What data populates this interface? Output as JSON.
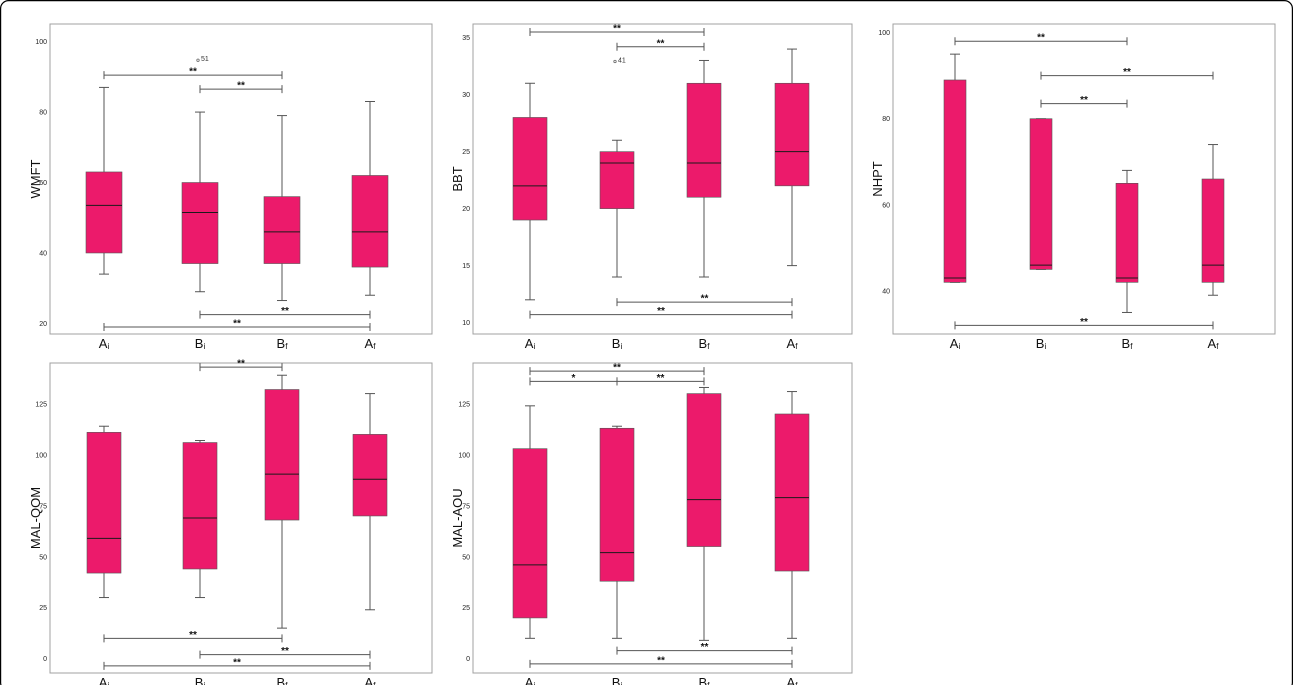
{
  "colors": {
    "box_fill": "#EC1A6B",
    "whisker": "#555555",
    "median": "#1a1a1a"
  },
  "chart_data": [
    {
      "type": "box",
      "ylabel": "WMFT",
      "categories": [
        "Ai",
        "Bi",
        "Bf",
        "Af"
      ],
      "category_labels": [
        {
          "main": "A",
          "sub": "i"
        },
        {
          "main": "B",
          "sub": "i"
        },
        {
          "main": "B",
          "sub": "f"
        },
        {
          "main": "A",
          "sub": "f"
        }
      ],
      "ylim": [
        17,
        105
      ],
      "yticks": [
        20,
        40,
        60,
        80,
        100
      ],
      "boxes": [
        {
          "min": 34,
          "q1": 40,
          "median": 53.5,
          "q3": 63,
          "max": 87
        },
        {
          "min": 29,
          "q1": 37,
          "median": 51.5,
          "q3": 60,
          "max": 80
        },
        {
          "min": 26.5,
          "q1": 37,
          "median": 46,
          "q3": 56,
          "max": 79
        },
        {
          "min": 28,
          "q1": 36,
          "median": 46,
          "q3": 62,
          "max": 83
        }
      ],
      "outliers": [
        {
          "cat": 1,
          "value": 95,
          "label": "51"
        }
      ],
      "significance": [
        {
          "from": 0,
          "to": 2,
          "y": 90.5,
          "label": "**"
        },
        {
          "from": 1,
          "to": 2,
          "y": 86.5,
          "label": "**"
        },
        {
          "from": 1,
          "to": 3,
          "y": 22.5,
          "label": "**"
        },
        {
          "from": 0,
          "to": 3,
          "y": 19,
          "label": "**"
        }
      ]
    },
    {
      "type": "box",
      "ylabel": "BBT",
      "categories": [
        "Ai",
        "Bi",
        "Bf",
        "Af"
      ],
      "category_labels": [
        {
          "main": "A",
          "sub": "i"
        },
        {
          "main": "B",
          "sub": "i"
        },
        {
          "main": "B",
          "sub": "f"
        },
        {
          "main": "A",
          "sub": "f"
        }
      ],
      "ylim": [
        9,
        36.2
      ],
      "yticks": [
        10,
        15,
        20,
        25,
        30,
        35
      ],
      "boxes": [
        {
          "min": 12,
          "q1": 19,
          "median": 22,
          "q3": 28,
          "max": 31
        },
        {
          "min": 14,
          "q1": 20,
          "median": 24,
          "q3": 25,
          "max": 26
        },
        {
          "min": 14,
          "q1": 21,
          "median": 24,
          "q3": 31,
          "max": 33
        },
        {
          "min": 15,
          "q1": 22,
          "median": 25,
          "q3": 31,
          "max": 34
        }
      ],
      "outliers": [
        {
          "cat": 1,
          "value": 33,
          "label": "41"
        }
      ],
      "significance": [
        {
          "from": 0,
          "to": 2,
          "y": 35.5,
          "label": "**"
        },
        {
          "from": 1,
          "to": 2,
          "y": 34.2,
          "label": "**"
        },
        {
          "from": 1,
          "to": 3,
          "y": 11.8,
          "label": "**"
        },
        {
          "from": 0,
          "to": 3,
          "y": 10.7,
          "label": "**"
        }
      ]
    },
    {
      "type": "box",
      "ylabel": "NHPT",
      "categories": [
        "Ai",
        "Bi",
        "Bf",
        "Af"
      ],
      "category_labels": [
        {
          "main": "A",
          "sub": "i"
        },
        {
          "main": "B",
          "sub": "i"
        },
        {
          "main": "B",
          "sub": "f"
        },
        {
          "main": "A",
          "sub": "f"
        }
      ],
      "ylim": [
        30,
        102
      ],
      "yticks": [
        40,
        60,
        80,
        100
      ],
      "boxes": [
        {
          "min": 42,
          "q1": 42,
          "median": 43,
          "q3": 89,
          "max": 95
        },
        {
          "min": 45,
          "q1": 45,
          "median": 46,
          "q3": 80,
          "max": 80
        },
        {
          "min": 35,
          "q1": 42,
          "median": 43,
          "q3": 65,
          "max": 68
        },
        {
          "min": 39,
          "q1": 42,
          "median": 46,
          "q3": 66,
          "max": 74
        }
      ],
      "outliers": [],
      "significance": [
        {
          "from": 0,
          "to": 2,
          "y": 98,
          "label": "**"
        },
        {
          "from": 1,
          "to": 3,
          "y": 90,
          "label": "**"
        },
        {
          "from": 1,
          "to": 2,
          "y": 83.5,
          "label": "**"
        },
        {
          "from": 0,
          "to": 3,
          "y": 32,
          "label": "**"
        }
      ]
    },
    {
      "type": "box",
      "ylabel": "MAL-QOM",
      "categories": [
        "Ai",
        "Bi",
        "Bf",
        "Af"
      ],
      "category_labels": [
        {
          "main": "A",
          "sub": "i"
        },
        {
          "main": "B",
          "sub": "i"
        },
        {
          "main": "B",
          "sub": "f"
        },
        {
          "main": "A",
          "sub": "f"
        }
      ],
      "ylim": [
        -7,
        145
      ],
      "yticks": [
        0,
        25,
        50,
        75,
        100,
        125
      ],
      "boxes": [
        {
          "min": 30,
          "q1": 42,
          "median": 59,
          "q3": 111,
          "max": 114
        },
        {
          "min": 30,
          "q1": 44,
          "median": 69,
          "q3": 106,
          "max": 107
        },
        {
          "min": 15,
          "q1": 68,
          "median": 90.5,
          "q3": 132,
          "max": 139
        },
        {
          "min": 24,
          "q1": 70,
          "median": 88,
          "q3": 110,
          "max": 130
        }
      ],
      "outliers": [],
      "significance": [
        {
          "from": 1,
          "to": 2,
          "y": 143,
          "label": "**"
        },
        {
          "from": 0,
          "to": 2,
          "y": 10,
          "label": "**"
        },
        {
          "from": 1,
          "to": 3,
          "y": 2,
          "label": "**"
        },
        {
          "from": 0,
          "to": 3,
          "y": -3.5,
          "label": "**"
        }
      ]
    },
    {
      "type": "box",
      "ylabel": "MAL-AOU",
      "categories": [
        "Ai",
        "Bi",
        "Bf",
        "Af"
      ],
      "category_labels": [
        {
          "main": "A",
          "sub": "i"
        },
        {
          "main": "B",
          "sub": "i"
        },
        {
          "main": "B",
          "sub": "f"
        },
        {
          "main": "A",
          "sub": "f"
        }
      ],
      "ylim": [
        -7,
        145
      ],
      "yticks": [
        0,
        25,
        50,
        75,
        100,
        125
      ],
      "boxes": [
        {
          "min": 10,
          "q1": 20,
          "median": 46,
          "q3": 103,
          "max": 124
        },
        {
          "min": 10,
          "q1": 38,
          "median": 52,
          "q3": 113,
          "max": 114
        },
        {
          "min": 9,
          "q1": 55,
          "median": 78,
          "q3": 130,
          "max": 133
        },
        {
          "min": 10,
          "q1": 43,
          "median": 79,
          "q3": 120,
          "max": 131
        }
      ],
      "outliers": [],
      "significance": [
        {
          "from": 0,
          "to": 2,
          "y": 141,
          "label": "**"
        },
        {
          "from": 0,
          "to": 1,
          "y": 136,
          "label": "*"
        },
        {
          "from": 1,
          "to": 2,
          "y": 136,
          "label": "**"
        },
        {
          "from": 1,
          "to": 3,
          "y": 4,
          "label": "**"
        },
        {
          "from": 0,
          "to": 3,
          "y": -2.5,
          "label": "**"
        }
      ]
    }
  ]
}
